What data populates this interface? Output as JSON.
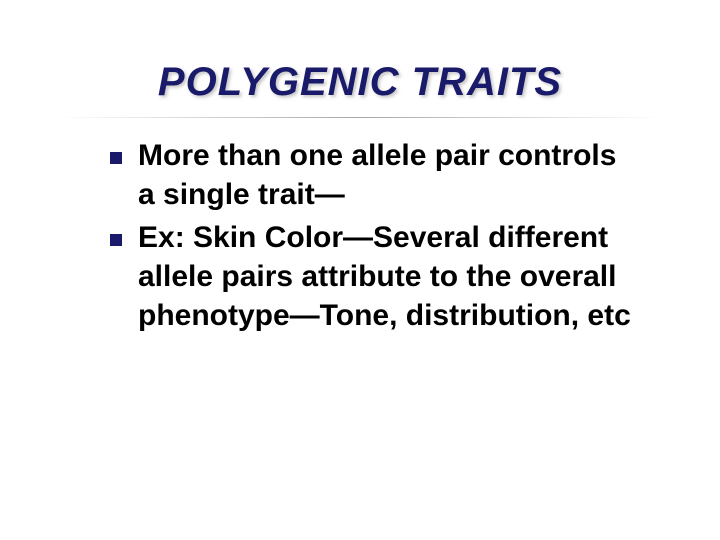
{
  "slide": {
    "title": "POLYGENIC TRAITS",
    "title_color": "#1a1a6a",
    "title_fontsize": 40,
    "title_fontstyle": "italic",
    "title_fontweight": "bold",
    "divider_color": "rgba(0,0,0,0.35)",
    "background_color": "#ffffff",
    "bullets": [
      {
        "text": "More than one allele pair controls a single trait—"
      },
      {
        "text": "Ex:  Skin Color—Several different allele pairs attribute to the overall phenotype—Tone, distribution, etc"
      }
    ],
    "bullet_marker_color": "#1a1a6a",
    "bullet_marker_size": 12,
    "bullet_text_color": "#000000",
    "bullet_fontsize": 30,
    "bullet_fontweight": "bold"
  }
}
